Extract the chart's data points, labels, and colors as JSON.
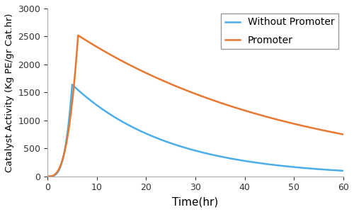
{
  "title": "",
  "xlabel": "Time(hr)",
  "ylabel": "Catalyst Activity (Kg PE/gr Cat.hr)",
  "xlim": [
    0,
    60
  ],
  "ylim": [
    0,
    3000
  ],
  "xticks": [
    0,
    10,
    20,
    30,
    40,
    50,
    60
  ],
  "yticks": [
    0,
    500,
    1000,
    1500,
    2000,
    2500,
    3000
  ],
  "line_without_promoter": {
    "label": "Without Promoter",
    "color": "#4baee8",
    "peak_time": 5.0,
    "peak_value": 1640,
    "rise_shape": 3.5,
    "decay_rate": 0.062
  },
  "line_promoter": {
    "label": "Promoter",
    "color": "#e87830",
    "peak_time": 6.2,
    "peak_value": 2520,
    "rise_shape": 3.0,
    "decay_rate": 0.022
  },
  "legend_loc": "upper right",
  "figsize": [
    5.0,
    2.99
  ],
  "dpi": 100
}
